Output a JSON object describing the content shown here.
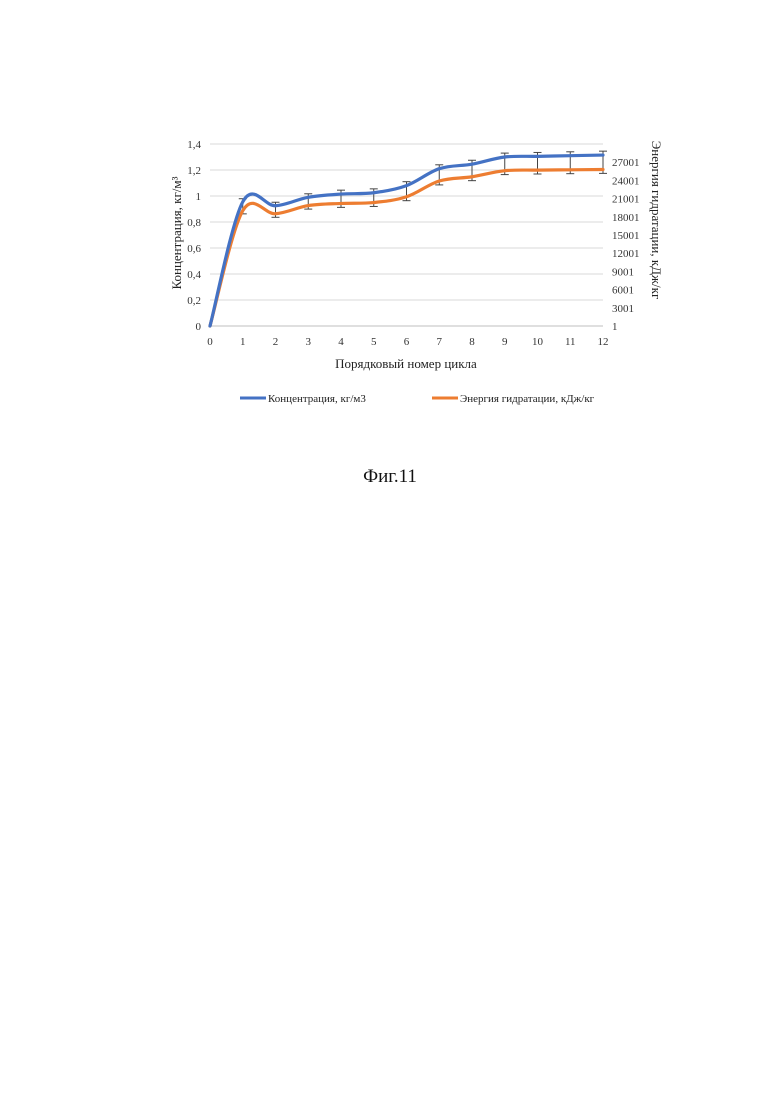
{
  "caption": "Фиг.11",
  "chart_data": {
    "type": "line",
    "xlabel": "Порядковый номер цикла",
    "ylabel_left": "Концентрация, кг/м³",
    "ylabel_right": "Энергия гидратации, кДж/кг",
    "x": [
      0,
      1,
      2,
      3,
      4,
      5,
      6,
      7,
      8,
      9,
      10,
      11,
      12
    ],
    "x_ticks": [
      "0",
      "1",
      "2",
      "3",
      "4",
      "5",
      "6",
      "7",
      "8",
      "9",
      "10",
      "11",
      "12"
    ],
    "ylim_left": [
      0,
      1.4
    ],
    "y_ticks_left": [
      "0",
      "0,2",
      "0,4",
      "0,6",
      "0,8",
      "1",
      "1,2",
      "1,4"
    ],
    "ylim_right": [
      1,
      30001
    ],
    "y_ticks_right": [
      "1",
      "3001",
      "6001",
      "9001",
      "12001",
      "15001",
      "18001",
      "21001",
      "24001",
      "27001"
    ],
    "grid": true,
    "legend_position": "bottom",
    "series": [
      {
        "name": "Концентрация, кг/м3",
        "axis": "left",
        "color": "#4472C4",
        "values": [
          0,
          0.955,
          0.925,
          0.99,
          1.015,
          1.025,
          1.08,
          1.21,
          1.245,
          1.3,
          1.305,
          1.31,
          1.315
        ],
        "error": [
          0,
          0.04,
          0.045,
          0.045,
          0.05,
          0.05,
          0.05,
          0.05,
          0.05,
          0.05,
          0.05,
          0.05,
          0.05
        ]
      },
      {
        "name": "Энергия гидратации, кДж/кг",
        "axis": "right",
        "color": "#ED7D31",
        "values": [
          1,
          19000,
          18500,
          19850,
          20200,
          20350,
          21300,
          23900,
          24600,
          25600,
          25700,
          25750,
          25800
        ]
      }
    ]
  }
}
